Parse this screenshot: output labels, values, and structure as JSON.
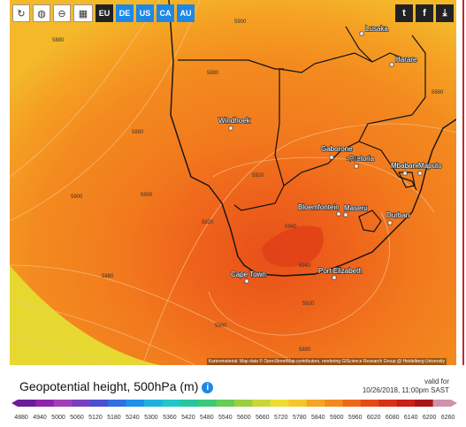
{
  "toolbar": {
    "buttons": [
      {
        "name": "refresh-button",
        "icon": "refresh-icon",
        "glyph": "↻"
      },
      {
        "name": "globe-button",
        "icon": "globe-icon",
        "glyph": "◍"
      },
      {
        "name": "zoom-out-button",
        "icon": "zoom-out-icon",
        "glyph": "⊖"
      },
      {
        "name": "city-button",
        "icon": "city-icon",
        "glyph": "▦"
      }
    ],
    "regions": [
      {
        "label": "EU",
        "active": true
      },
      {
        "label": "DE",
        "active": false
      },
      {
        "label": "US",
        "active": false
      },
      {
        "label": "CA",
        "active": false
      },
      {
        "label": "AU",
        "active": false
      }
    ]
  },
  "share": {
    "buttons": [
      {
        "name": "twitter-button",
        "icon": "twitter-icon",
        "glyph": "t"
      },
      {
        "name": "facebook-button",
        "icon": "facebook-icon",
        "glyph": "f"
      },
      {
        "name": "download-button",
        "icon": "download-icon",
        "glyph": "⤓"
      }
    ]
  },
  "map": {
    "cities": [
      {
        "name": "Lusaka"
      },
      {
        "name": "Harare"
      },
      {
        "name": "Windhoek"
      },
      {
        "name": "Gaborone"
      },
      {
        "name": "Pretoria"
      },
      {
        "name": "Mbabane"
      },
      {
        "name": "Maputo"
      },
      {
        "name": "Bloemfontein"
      },
      {
        "name": "Maseru"
      },
      {
        "name": "Durban"
      },
      {
        "name": "Cape Town"
      },
      {
        "name": "Port Elizabeth"
      }
    ],
    "contour_labels": [
      "5900",
      "5880",
      "5880",
      "5880",
      "5880",
      "5900",
      "5920",
      "5900",
      "5920",
      "5920",
      "5940",
      "5940",
      "5920",
      "5900",
      "5880",
      "5880"
    ],
    "attribution": "Kartenmaterial: Map data © OpenStreetMap contributors, rendering GIScience Research Group @ Heidelberg University"
  },
  "legend": {
    "title": "Geopotential height, 500hPa (m)",
    "info_glyph": "i",
    "valid_label": "valid for",
    "valid_time": "10/26/2018, 11:00pm SAST",
    "ticks": [
      "4880",
      "4940",
      "5000",
      "5060",
      "5120",
      "5180",
      "5240",
      "5300",
      "5360",
      "5420",
      "5480",
      "5540",
      "5600",
      "5660",
      "5720",
      "5780",
      "5840",
      "5900",
      "5960",
      "6020",
      "6080",
      "6140",
      "6200",
      "6260"
    ],
    "colors": [
      "#6a1b9a",
      "#8e24aa",
      "#a23fb8",
      "#7a3fc0",
      "#4b4fd0",
      "#2f6fe0",
      "#1f8fe8",
      "#20b0e0",
      "#20c8c8",
      "#26c6a0",
      "#3cc878",
      "#66cc55",
      "#9ad040",
      "#c8d838",
      "#eedd30",
      "#f6c629",
      "#f4a523",
      "#f28b1e",
      "#ee6a1a",
      "#e54a17",
      "#d83216",
      "#c81f16",
      "#a8141a",
      "#ce93a8"
    ]
  }
}
